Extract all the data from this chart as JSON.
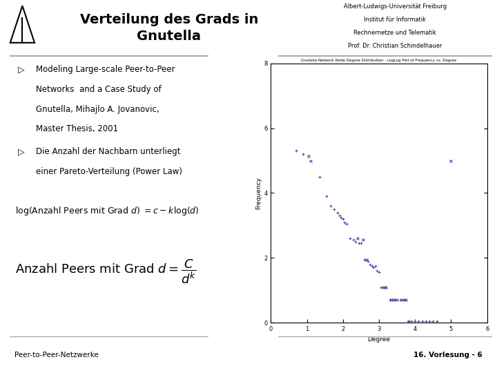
{
  "title": "Verteilung des Grads in\nGnutella",
  "header_right_lines": [
    "Albert-Ludwigs-Universität Freiburg",
    "Institut für Informatik",
    "Rechnernetze und Telematik",
    "Prof. Dr. Christian Schindelhauer"
  ],
  "bullet1_lines": [
    "Modeling Large-scale Peer-to-Peer",
    "Networks  and a Case Study of",
    "Gnutella, Mihajlo A. Jovanovic,",
    "Master Thesis, 2001"
  ],
  "bullet2_lines": [
    "Die Anzahl der Nachbarn unterliegt",
    "einer Pareto-Verteilung (Power Law)"
  ],
  "footer_left": "Peer-to-Peer-Netzwerke",
  "footer_right": "16. Vorlesung - 6",
  "plot_title": "Gnutella Network Node Degree Distribution - LogLog Plot of Frequency vs. Degree",
  "plot_xlabel": "Degree",
  "plot_ylabel": "Frequency",
  "slide_bg": "#ffffff",
  "scatter_color": "#4444aa",
  "scatter_data_x": [
    0.7,
    0.9,
    1.05,
    1.1,
    1.35,
    1.55,
    1.65,
    1.75,
    1.85,
    1.9,
    1.95,
    2.0,
    2.05,
    2.1,
    2.2,
    2.3,
    2.35,
    2.4,
    2.45,
    2.5,
    2.55,
    2.6,
    2.65,
    2.7,
    2.75,
    2.8,
    2.85,
    2.9,
    2.95,
    3.0,
    3.05,
    3.1,
    3.15,
    3.2,
    3.3,
    3.35,
    3.4,
    3.45,
    3.5,
    3.6,
    3.65,
    3.7,
    3.75,
    3.8,
    3.85,
    3.9,
    4.0,
    4.1,
    4.2,
    4.3,
    4.4,
    4.5,
    4.6,
    5.0
  ],
  "scatter_data_y": [
    5.3,
    5.2,
    5.15,
    5.0,
    4.5,
    3.9,
    3.6,
    3.5,
    3.4,
    3.3,
    3.25,
    3.2,
    3.1,
    3.05,
    2.6,
    2.55,
    2.5,
    2.6,
    2.45,
    2.45,
    2.55,
    1.95,
    1.95,
    1.9,
    1.8,
    1.75,
    1.7,
    1.75,
    1.6,
    1.55,
    1.08,
    1.08,
    1.08,
    1.08,
    0.7,
    0.7,
    0.7,
    0.7,
    0.7,
    0.7,
    0.7,
    0.7,
    0.7,
    0.05,
    0.05,
    0.05,
    0.05,
    0.05,
    0.05,
    0.05,
    0.05,
    0.05,
    0.05,
    5.0
  ],
  "scatter_markers": [
    "+",
    "+",
    "x",
    "x",
    "+",
    "+",
    "+",
    "+",
    "+",
    "+",
    "+",
    "+",
    "+",
    "+",
    "+",
    "+",
    "+",
    "x",
    "+",
    "+",
    "x",
    "+",
    "x",
    "+",
    "+",
    "+",
    "+",
    "+",
    "+",
    "+",
    "+",
    "+",
    "x",
    "x",
    "+",
    "x",
    "x",
    "+",
    "x",
    "+",
    "x",
    "+",
    "x",
    "+",
    "+",
    "+",
    "+",
    "+",
    "+",
    "+",
    "+",
    "+",
    "+",
    "x"
  ]
}
